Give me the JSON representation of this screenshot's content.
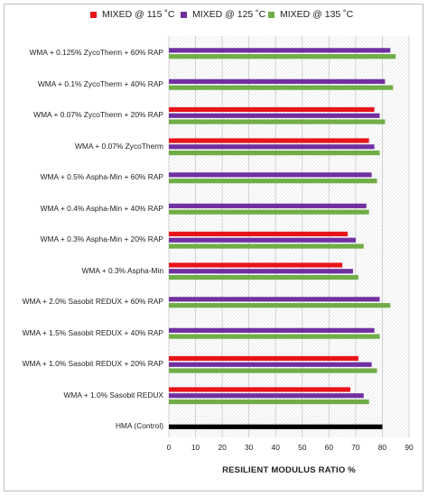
{
  "chart_data": {
    "type": "bar",
    "orientation": "horizontal",
    "title": "",
    "xlabel": "RESILIENT MODULUS RATIO %",
    "ylabel": "",
    "xlim": [
      0,
      90
    ],
    "xticks": [
      "0",
      "10",
      "20",
      "30",
      "40",
      "50",
      "60",
      "70",
      "80",
      "90"
    ],
    "legend_position": "top",
    "categories": [
      "WMA + 0.125% ZycoTherm + 60% RAP",
      "WMA + 0.1% ZycoTherm + 40% RAP",
      "WMA + 0.07% ZycoTherm + 20% RAP",
      "WMA + 0.07% ZycoTherm",
      "WMA + 0.5% Aspha-Min + 60% RAP",
      "WMA + 0.4% Aspha-Min + 40% RAP",
      "WMA + 0.3% Aspha-Min + 20% RAP",
      "WMA + 0.3% Aspha-Min",
      "WMA + 2.0% Sasobit REDUX + 60% RAP",
      "WMA + 1.5% Sasobit REDUX + 40% RAP",
      "WMA + 1.0% Sasobit REDUX + 20% RAP",
      "WMA + 1.0% Sasobit REDUX",
      "HMA (Control)"
    ],
    "series": [
      {
        "name": "MIXED @ 115 ˚C",
        "color": "#e8141a",
        "values": [
          null,
          null,
          77,
          75,
          null,
          null,
          67,
          65,
          null,
          null,
          71,
          68,
          null
        ]
      },
      {
        "name": "MIXED @ 125 ˚C",
        "color": "#7030a0",
        "values": [
          83,
          81,
          79,
          77,
          76,
          74,
          70,
          69,
          79,
          77,
          76,
          73,
          null
        ]
      },
      {
        "name": "MIXED @ 135 ˚C",
        "color": "#70ad47",
        "values": [
          85,
          84,
          81,
          79,
          78,
          75,
          73,
          71,
          83,
          79,
          78,
          75,
          null
        ]
      },
      {
        "name": "",
        "color": "#000000",
        "values": [
          null,
          null,
          null,
          null,
          null,
          null,
          null,
          null,
          null,
          null,
          null,
          null,
          80
        ]
      }
    ]
  }
}
